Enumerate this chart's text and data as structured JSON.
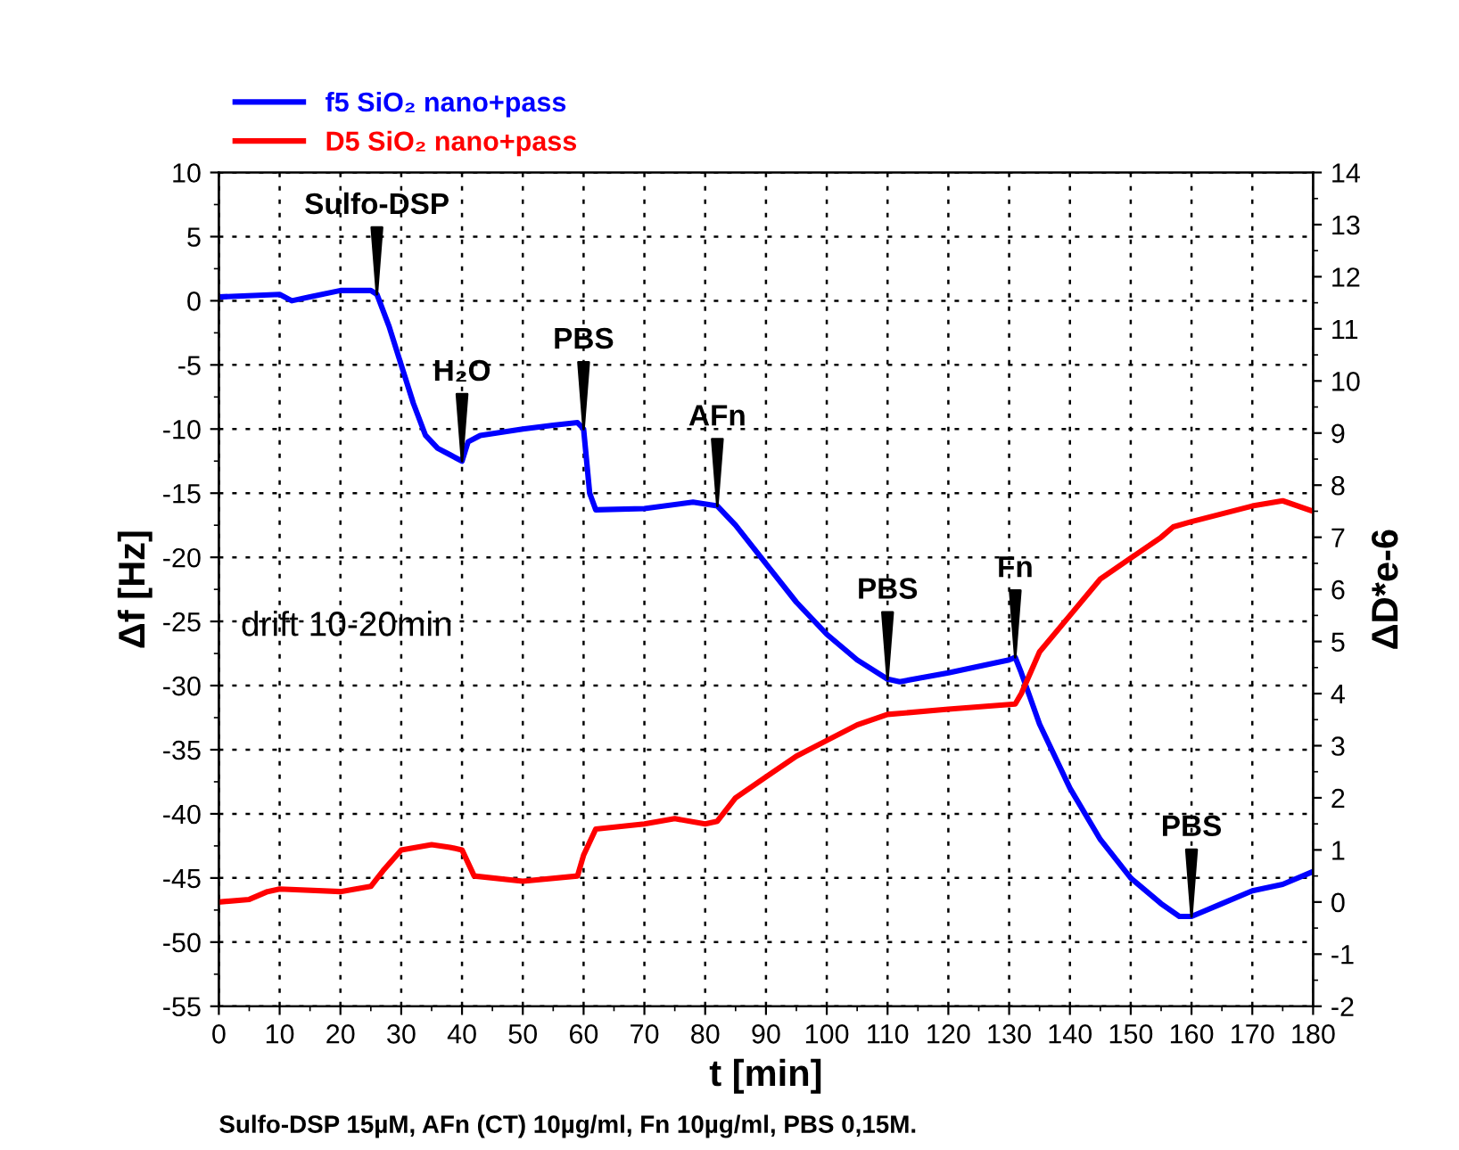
{
  "chart_data": {
    "type": "line",
    "xlabel": "t [min]",
    "ylabel": "Δf [Hz]",
    "y2label": "ΔD*e-6",
    "xlim": [
      0,
      180
    ],
    "xticks": [
      0,
      10,
      20,
      30,
      40,
      50,
      60,
      70,
      80,
      90,
      100,
      110,
      120,
      130,
      140,
      150,
      160,
      170,
      180
    ],
    "ylim": [
      -55,
      10
    ],
    "yticks": [
      -55,
      -50,
      -45,
      -40,
      -35,
      -30,
      -25,
      -20,
      -15,
      -10,
      -5,
      0,
      5,
      10
    ],
    "y2lim": [
      -2,
      14
    ],
    "y2ticks": [
      -2,
      -1,
      0,
      1,
      2,
      3,
      4,
      5,
      6,
      7,
      8,
      9,
      10,
      11,
      12,
      13,
      14
    ],
    "grid": true,
    "legend": "top left",
    "series": [
      {
        "name": "f5 SiO₂ nano+pass",
        "color": "#0000ff",
        "x": [
          0,
          10,
          12,
          15,
          20,
          25,
          26,
          28,
          30,
          32,
          34,
          36,
          38,
          40,
          41,
          43,
          50,
          55,
          59,
          60,
          61,
          62,
          70,
          78,
          82,
          85,
          90,
          95,
          100,
          105,
          110,
          112,
          120,
          130,
          131,
          132,
          135,
          140,
          145,
          150,
          155,
          158,
          160,
          165,
          170,
          175,
          180
        ],
        "values": [
          0.3,
          0.5,
          0.0,
          0.3,
          0.8,
          0.8,
          0.5,
          -2,
          -5,
          -8,
          -10.5,
          -11.5,
          -12,
          -12.5,
          -11,
          -10.5,
          -10,
          -9.7,
          -9.5,
          -10,
          -15,
          -16.3,
          -16.2,
          -15.7,
          -16,
          -17.5,
          -20.5,
          -23.5,
          -26,
          -28,
          -29.5,
          -29.7,
          -29,
          -28,
          -27.8,
          -29,
          -33,
          -38,
          -42,
          -45,
          -47,
          -48,
          -48,
          -47,
          -46,
          -45.5,
          -44.5
        ]
      },
      {
        "name": "D5 SiO₂ nano+pass",
        "color": "#ff0000",
        "axis": "y2",
        "x": [
          0,
          5,
          8,
          10,
          20,
          25,
          27,
          30,
          35,
          38,
          40,
          42,
          50,
          59,
          60,
          62,
          70,
          75,
          80,
          82,
          85,
          90,
          95,
          100,
          105,
          110,
          120,
          131,
          132,
          135,
          140,
          145,
          150,
          155,
          157,
          160,
          170,
          175,
          180
        ],
        "values": [
          0.0,
          0.05,
          0.2,
          0.25,
          0.2,
          0.3,
          0.6,
          1.0,
          1.1,
          1.05,
          1.0,
          0.5,
          0.4,
          0.5,
          0.9,
          1.4,
          1.5,
          1.6,
          1.5,
          1.55,
          2.0,
          2.4,
          2.8,
          3.1,
          3.4,
          3.6,
          3.7,
          3.8,
          4.0,
          4.8,
          5.5,
          6.2,
          6.6,
          7.0,
          7.2,
          7.3,
          7.6,
          7.7,
          7.5
        ]
      }
    ],
    "annotations": [
      {
        "text": "Sulfo-DSP",
        "x": 26,
        "y": 0.5
      },
      {
        "text": "H₂O",
        "x": 40,
        "y": -12.5
      },
      {
        "text": "PBS",
        "x": 60,
        "y": -10
      },
      {
        "text": "AFn",
        "x": 82,
        "y": -16
      },
      {
        "text": "PBS",
        "x": 110,
        "y": -29.5
      },
      {
        "text": "Fn",
        "x": 131,
        "y": -27.8
      },
      {
        "text": "PBS",
        "x": 160,
        "y": -48
      },
      "drift 10-20min",
      "Sulfo-DSP 15µM, AFn (CT) 10µg/ml, Fn 10µg/ml, PBS 0,15M."
    ]
  }
}
